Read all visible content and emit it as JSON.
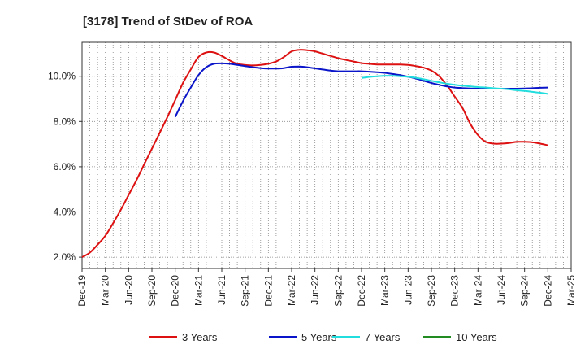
{
  "chart_data": {
    "type": "line",
    "title": "[3178]  Trend of StDev of ROA",
    "xlabel": "",
    "ylabel": "",
    "x_ticks": [
      "Dec-19",
      "Mar-20",
      "Jun-20",
      "Sep-20",
      "Dec-20",
      "Mar-21",
      "Jun-21",
      "Sep-21",
      "Dec-21",
      "Mar-22",
      "Jun-22",
      "Sep-22",
      "Dec-22",
      "Mar-23",
      "Jun-23",
      "Sep-23",
      "Dec-23",
      "Mar-24",
      "Jun-24",
      "Sep-24",
      "Dec-24",
      "Mar-25"
    ],
    "y_ticks": [
      {
        "value": 2.0,
        "label": "2.0%"
      },
      {
        "value": 4.0,
        "label": "4.0%"
      },
      {
        "value": 6.0,
        "label": "6.0%"
      },
      {
        "value": 8.0,
        "label": "8.0%"
      },
      {
        "value": 10.0,
        "label": "10.0%"
      }
    ],
    "ylim": [
      1.5,
      11.5
    ],
    "grid": true,
    "legend_position": "bottom",
    "series": [
      {
        "name": "3 Years",
        "color": "#dd1111",
        "points": [
          [
            "Dec-19",
            2.0
          ],
          [
            "Jan-20",
            2.2
          ],
          [
            "Feb-20",
            2.55
          ],
          [
            "Mar-20",
            2.95
          ],
          [
            "Apr-20",
            3.5
          ],
          [
            "May-20",
            4.1
          ],
          [
            "Jun-20",
            4.75
          ],
          [
            "Jul-20",
            5.4
          ],
          [
            "Aug-20",
            6.1
          ],
          [
            "Sep-20",
            6.8
          ],
          [
            "Oct-20",
            7.5
          ],
          [
            "Nov-20",
            8.2
          ],
          [
            "Dec-20",
            8.95
          ],
          [
            "Jan-21",
            9.7
          ],
          [
            "Feb-21",
            10.3
          ],
          [
            "Mar-21",
            10.85
          ],
          [
            "Apr-21",
            11.05
          ],
          [
            "May-21",
            11.05
          ],
          [
            "Jun-21",
            10.9
          ],
          [
            "Jul-21",
            10.7
          ],
          [
            "Aug-21",
            10.55
          ],
          [
            "Sep-21",
            10.5
          ],
          [
            "Oct-21",
            10.48
          ],
          [
            "Nov-21",
            10.5
          ],
          [
            "Dec-21",
            10.55
          ],
          [
            "Jan-22",
            10.65
          ],
          [
            "Feb-22",
            10.85
          ],
          [
            "Mar-22",
            11.1
          ],
          [
            "Apr-22",
            11.17
          ],
          [
            "May-22",
            11.15
          ],
          [
            "Jun-22",
            11.1
          ],
          [
            "Jul-22",
            11.0
          ],
          [
            "Aug-22",
            10.9
          ],
          [
            "Sep-22",
            10.8
          ],
          [
            "Oct-22",
            10.72
          ],
          [
            "Nov-22",
            10.65
          ],
          [
            "Dec-22",
            10.58
          ],
          [
            "Jan-23",
            10.55
          ],
          [
            "Feb-23",
            10.52
          ],
          [
            "Mar-23",
            10.52
          ],
          [
            "Apr-23",
            10.52
          ],
          [
            "May-23",
            10.52
          ],
          [
            "Jun-23",
            10.5
          ],
          [
            "Jul-23",
            10.45
          ],
          [
            "Aug-23",
            10.38
          ],
          [
            "Sep-23",
            10.25
          ],
          [
            "Oct-23",
            10.0
          ],
          [
            "Nov-23",
            9.6
          ],
          [
            "Dec-23",
            9.1
          ],
          [
            "Jan-24",
            8.6
          ],
          [
            "Feb-24",
            7.9
          ],
          [
            "Mar-24",
            7.4
          ],
          [
            "Apr-24",
            7.1
          ],
          [
            "May-24",
            7.02
          ],
          [
            "Jun-24",
            7.02
          ],
          [
            "Jul-24",
            7.05
          ],
          [
            "Aug-24",
            7.1
          ],
          [
            "Sep-24",
            7.1
          ],
          [
            "Oct-24",
            7.08
          ],
          [
            "Nov-24",
            7.02
          ],
          [
            "Dec-24",
            6.95
          ]
        ]
      },
      {
        "name": "5 Years",
        "color": "#0a14c8",
        "points": [
          [
            "Dec-20",
            8.2
          ],
          [
            "Jan-21",
            8.9
          ],
          [
            "Feb-21",
            9.5
          ],
          [
            "Mar-21",
            10.05
          ],
          [
            "Apr-21",
            10.4
          ],
          [
            "May-21",
            10.55
          ],
          [
            "Jun-21",
            10.57
          ],
          [
            "Jul-21",
            10.55
          ],
          [
            "Aug-21",
            10.5
          ],
          [
            "Sep-21",
            10.45
          ],
          [
            "Oct-21",
            10.4
          ],
          [
            "Nov-21",
            10.36
          ],
          [
            "Dec-21",
            10.34
          ],
          [
            "Jan-22",
            10.34
          ],
          [
            "Feb-22",
            10.36
          ],
          [
            "Mar-22",
            10.42
          ],
          [
            "Apr-22",
            10.43
          ],
          [
            "May-22",
            10.4
          ],
          [
            "Jun-22",
            10.35
          ],
          [
            "Jul-22",
            10.3
          ],
          [
            "Aug-22",
            10.25
          ],
          [
            "Sep-22",
            10.22
          ],
          [
            "Oct-22",
            10.22
          ],
          [
            "Nov-22",
            10.22
          ],
          [
            "Dec-22",
            10.22
          ],
          [
            "Jan-23",
            10.2
          ],
          [
            "Feb-23",
            10.18
          ],
          [
            "Mar-23",
            10.15
          ],
          [
            "Apr-23",
            10.1
          ],
          [
            "May-23",
            10.05
          ],
          [
            "Jun-23",
            9.98
          ],
          [
            "Jul-23",
            9.9
          ],
          [
            "Aug-23",
            9.8
          ],
          [
            "Sep-23",
            9.7
          ],
          [
            "Oct-23",
            9.62
          ],
          [
            "Nov-23",
            9.55
          ],
          [
            "Dec-23",
            9.5
          ],
          [
            "Jan-24",
            9.48
          ],
          [
            "Feb-24",
            9.46
          ],
          [
            "Mar-24",
            9.45
          ],
          [
            "Apr-24",
            9.45
          ],
          [
            "May-24",
            9.45
          ],
          [
            "Jun-24",
            9.45
          ],
          [
            "Jul-24",
            9.45
          ],
          [
            "Aug-24",
            9.45
          ],
          [
            "Sep-24",
            9.46
          ],
          [
            "Oct-24",
            9.47
          ],
          [
            "Nov-24",
            9.49
          ],
          [
            "Dec-24",
            9.5
          ]
        ]
      },
      {
        "name": "7 Years",
        "color": "#22dddd",
        "points": [
          [
            "Dec-22",
            9.92
          ],
          [
            "Jan-23",
            9.97
          ],
          [
            "Feb-23",
            10.0
          ],
          [
            "Mar-23",
            10.02
          ],
          [
            "Apr-23",
            10.02
          ],
          [
            "May-23",
            10.0
          ],
          [
            "Jun-23",
            9.98
          ],
          [
            "Jul-23",
            9.93
          ],
          [
            "Aug-23",
            9.87
          ],
          [
            "Sep-23",
            9.8
          ],
          [
            "Oct-23",
            9.73
          ],
          [
            "Nov-23",
            9.67
          ],
          [
            "Dec-23",
            9.62
          ],
          [
            "Jan-24",
            9.58
          ],
          [
            "Feb-24",
            9.55
          ],
          [
            "Mar-24",
            9.52
          ],
          [
            "Apr-24",
            9.5
          ],
          [
            "May-24",
            9.47
          ],
          [
            "Jun-24",
            9.45
          ],
          [
            "Jul-24",
            9.42
          ],
          [
            "Aug-24",
            9.38
          ],
          [
            "Sep-24",
            9.35
          ],
          [
            "Oct-24",
            9.31
          ],
          [
            "Nov-24",
            9.27
          ],
          [
            "Dec-24",
            9.22
          ]
        ]
      },
      {
        "name": "10 Years",
        "color": "#228b22",
        "points": []
      }
    ]
  }
}
